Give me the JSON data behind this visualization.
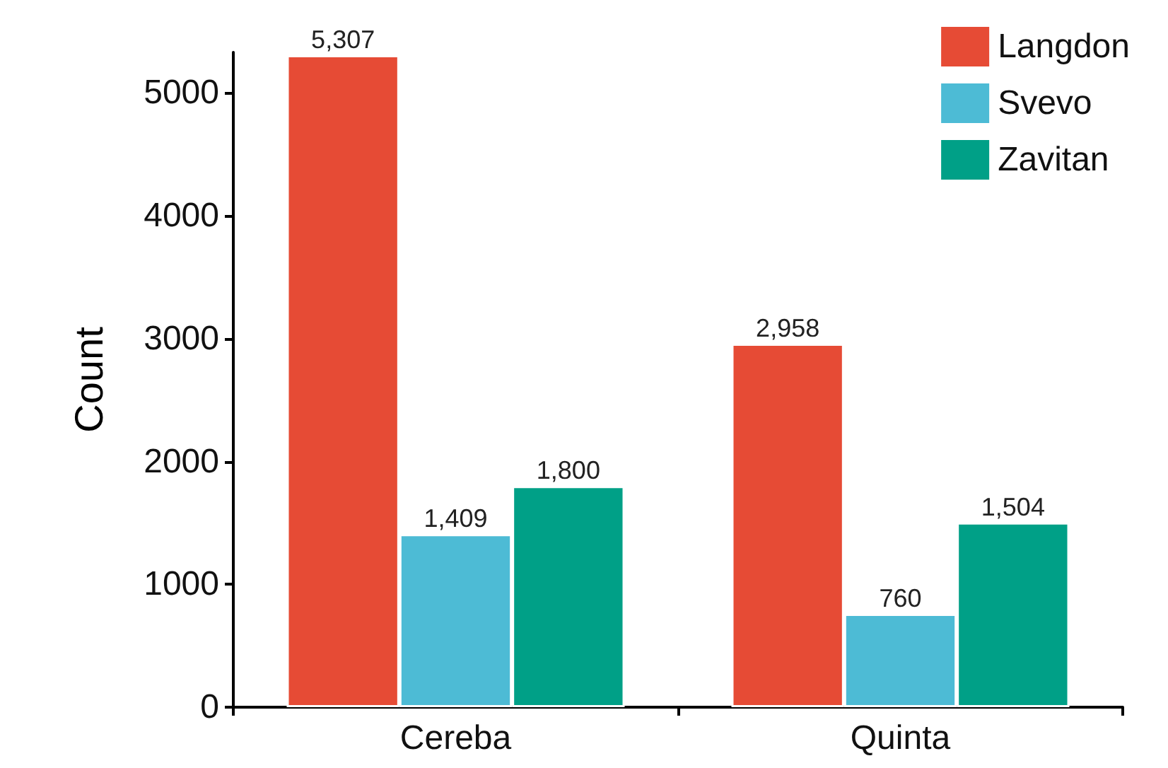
{
  "chart_data": {
    "type": "bar",
    "ylabel": "Count",
    "categories": [
      "Cereba",
      "Quinta"
    ],
    "series": [
      {
        "name": "Langdon",
        "color": "#e64b35",
        "values": [
          5307,
          2958
        ],
        "value_labels": [
          "5,307",
          "2,958"
        ]
      },
      {
        "name": "Svevo",
        "color": "#4dbbd5",
        "values": [
          1409,
          760
        ],
        "value_labels": [
          "1,409",
          "760"
        ]
      },
      {
        "name": "Zavitan",
        "color": "#00a087",
        "values": [
          1800,
          1504
        ],
        "value_labels": [
          "1,800",
          "1,504"
        ]
      }
    ],
    "ylim": [
      0,
      5330
    ],
    "yticks": [
      0,
      1000,
      2000,
      3000,
      4000,
      5000
    ],
    "grid": false,
    "legend": "top right"
  }
}
